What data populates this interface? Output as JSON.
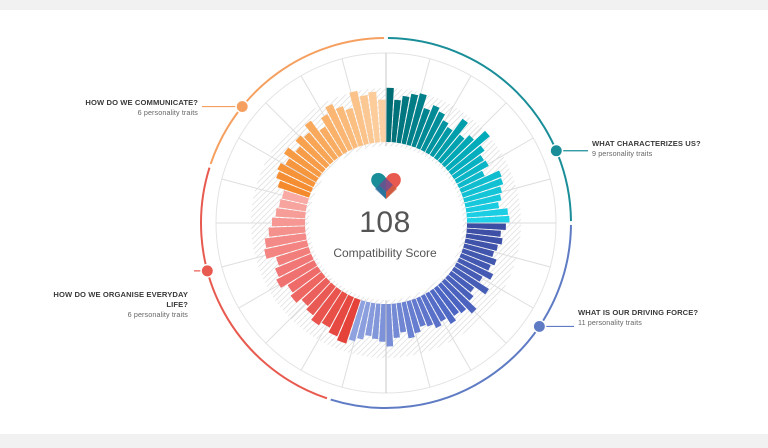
{
  "chart_data": {
    "type": "radial-bar",
    "score": "108",
    "score_label": "Compatibility Score",
    "groups": [
      {
        "name": "WHAT CHARACTERIZES US?",
        "subtitle": "9 personality traits",
        "colors": [
          "#006d75",
          "#00a7b5",
          "#1ed2e8"
        ],
        "values": [
          0.92,
          0.72,
          0.8,
          0.86,
          0.9,
          0.68,
          0.78,
          0.72,
          0.62,
          0.56,
          0.82,
          0.58,
          0.68,
          0.92,
          0.7,
          0.6,
          0.62,
          0.48,
          0.74,
          0.72,
          0.66,
          0.62,
          0.56,
          0.7,
          0.72
        ]
      },
      {
        "name": "WHAT IS OUR DRIVING FORCE?",
        "subtitle": "11 personality traits",
        "colors": [
          "#3c4ea3",
          "#4e67c4",
          "#8fa2e0"
        ],
        "values": [
          0.66,
          0.58,
          0.62,
          0.56,
          0.52,
          0.6,
          0.54,
          0.64,
          0.5,
          0.7,
          0.48,
          0.56,
          0.74,
          0.62,
          0.58,
          0.66,
          0.54,
          0.6,
          0.52,
          0.48,
          0.56,
          0.62,
          0.5,
          0.58,
          0.72,
          0.64,
          0.6,
          0.56,
          0.64,
          0.7
        ]
      },
      {
        "name": "HOW DO WE ORGANISE EVERYDAY LIFE?",
        "subtitle": "6 personality traits",
        "colors": [
          "#e5433a",
          "#f07473",
          "#f9aaa4"
        ],
        "values": [
          0.78,
          0.72,
          0.64,
          0.7,
          0.62,
          0.56,
          0.66,
          0.6,
          0.72,
          0.66,
          0.58,
          0.74,
          0.7,
          0.62,
          0.56,
          0.5,
          0.46,
          0.44
        ]
      },
      {
        "name": "HOW DO WE COMMUNICATE?",
        "subtitle": "6 personality traits",
        "colors": [
          "#f58a2c",
          "#f9ab5e",
          "#fcd0a2"
        ],
        "values": [
          0.56,
          0.64,
          0.68,
          0.6,
          0.72,
          0.58,
          0.7,
          0.64,
          0.78,
          0.56,
          0.72,
          0.84,
          0.74,
          0.66,
          0.92,
          0.82,
          0.86,
          0.72
        ]
      }
    ]
  }
}
